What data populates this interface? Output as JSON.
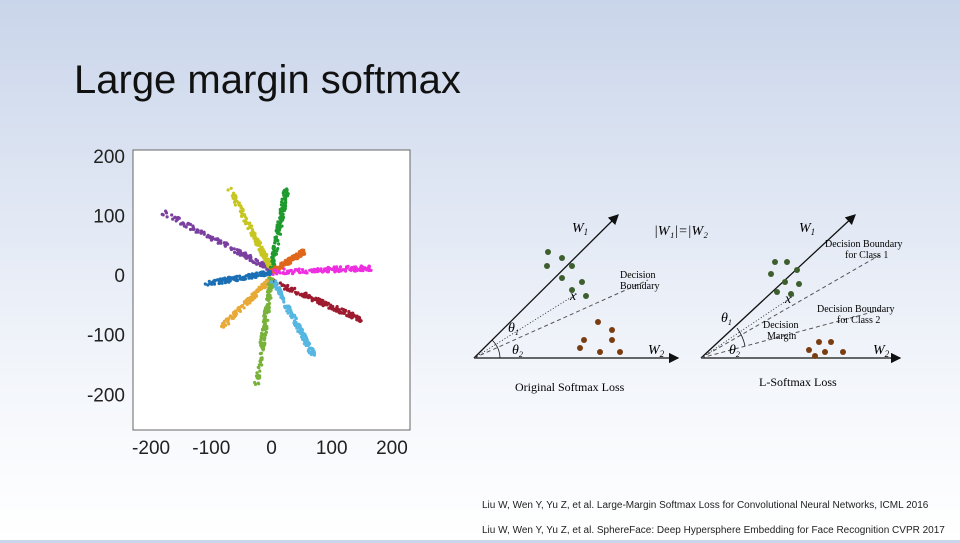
{
  "slide": {
    "title": "Large margin softmax"
  },
  "chart_data": {
    "type": "scatter",
    "title": "",
    "xlabel": "",
    "ylabel": "",
    "xlim": [
      -230,
      230
    ],
    "ylim": [
      -260,
      210
    ],
    "xticks": [
      -200,
      -100,
      0,
      100,
      200
    ],
    "yticks": [
      200,
      100,
      0,
      -100,
      -200
    ],
    "xtick_labels": [
      "-200",
      "-100",
      "0",
      "100",
      "200"
    ],
    "ytick_labels": [
      "200",
      "100",
      "0",
      "-100",
      "-200"
    ],
    "grid": false,
    "series": [
      {
        "color": "#7b3fa0",
        "x": [
          -180,
          0
        ],
        "y": [
          105,
          10
        ]
      },
      {
        "color": "#c7c620",
        "x": [
          -70,
          0
        ],
        "y": [
          145,
          10
        ]
      },
      {
        "color": "#1f9a2e",
        "x": [
          0,
          25
        ],
        "y": [
          10,
          145
        ]
      },
      {
        "color": "#e0661a",
        "x": [
          0,
          55
        ],
        "y": [
          5,
          40
        ]
      },
      {
        "color": "#ee2ee0",
        "x": [
          0,
          165
        ],
        "y": [
          5,
          12
        ]
      },
      {
        "color": "#1b6fb5",
        "x": [
          -110,
          0
        ],
        "y": [
          -15,
          5
        ]
      },
      {
        "color": "#9e1a2e",
        "x": [
          0,
          150
        ],
        "y": [
          -10,
          -75
        ]
      },
      {
        "color": "#e8a936",
        "x": [
          -85,
          0
        ],
        "y": [
          -90,
          -5
        ]
      },
      {
        "color": "#78b23b",
        "x": [
          -25,
          0
        ],
        "y": [
          -185,
          -5
        ]
      },
      {
        "color": "#55b7e2",
        "x": [
          0,
          70
        ],
        "y": [
          -5,
          -135
        ]
      }
    ]
  },
  "diagrams": {
    "left": {
      "w1": "W",
      "w1_sub": "1",
      "w2": "W",
      "w2_sub": "2",
      "norm_eq": "|W₁|=|W₂|",
      "x_label": "x",
      "theta1": "θ",
      "theta1_sub": "1",
      "theta2": "θ",
      "theta2_sub": "2",
      "boundary_label_1": "Decision",
      "boundary_label_2": "Boundary",
      "caption": "Original Softmax Loss"
    },
    "right": {
      "w1": "W",
      "w1_sub": "1",
      "w2": "W",
      "w2_sub": "2",
      "x_label": "x",
      "theta1": "θ",
      "theta1_sub": "1",
      "theta2": "θ",
      "theta2_sub": "2",
      "class1_label_1": "Decision Boundary",
      "class1_label_2": "for Class 1",
      "class2_label_1": "Decision Boundary",
      "class2_label_2": "for Class 2",
      "margin_label_1": "Decision",
      "margin_label_2": "Margin",
      "caption": "L-Softmax Loss"
    },
    "colors": {
      "class1": "#3d5e2d",
      "class2": "#7a3d12"
    }
  },
  "references": [
    "Liu W, Wen Y, Yu Z, et al. Large-Margin Softmax Loss for Convolutional Neural Networks, ICML 2016",
    "Liu W, Wen Y, Yu Z, et al. SphereFace: Deep Hypersphere Embedding for Face Recognition CVPR 2017"
  ]
}
